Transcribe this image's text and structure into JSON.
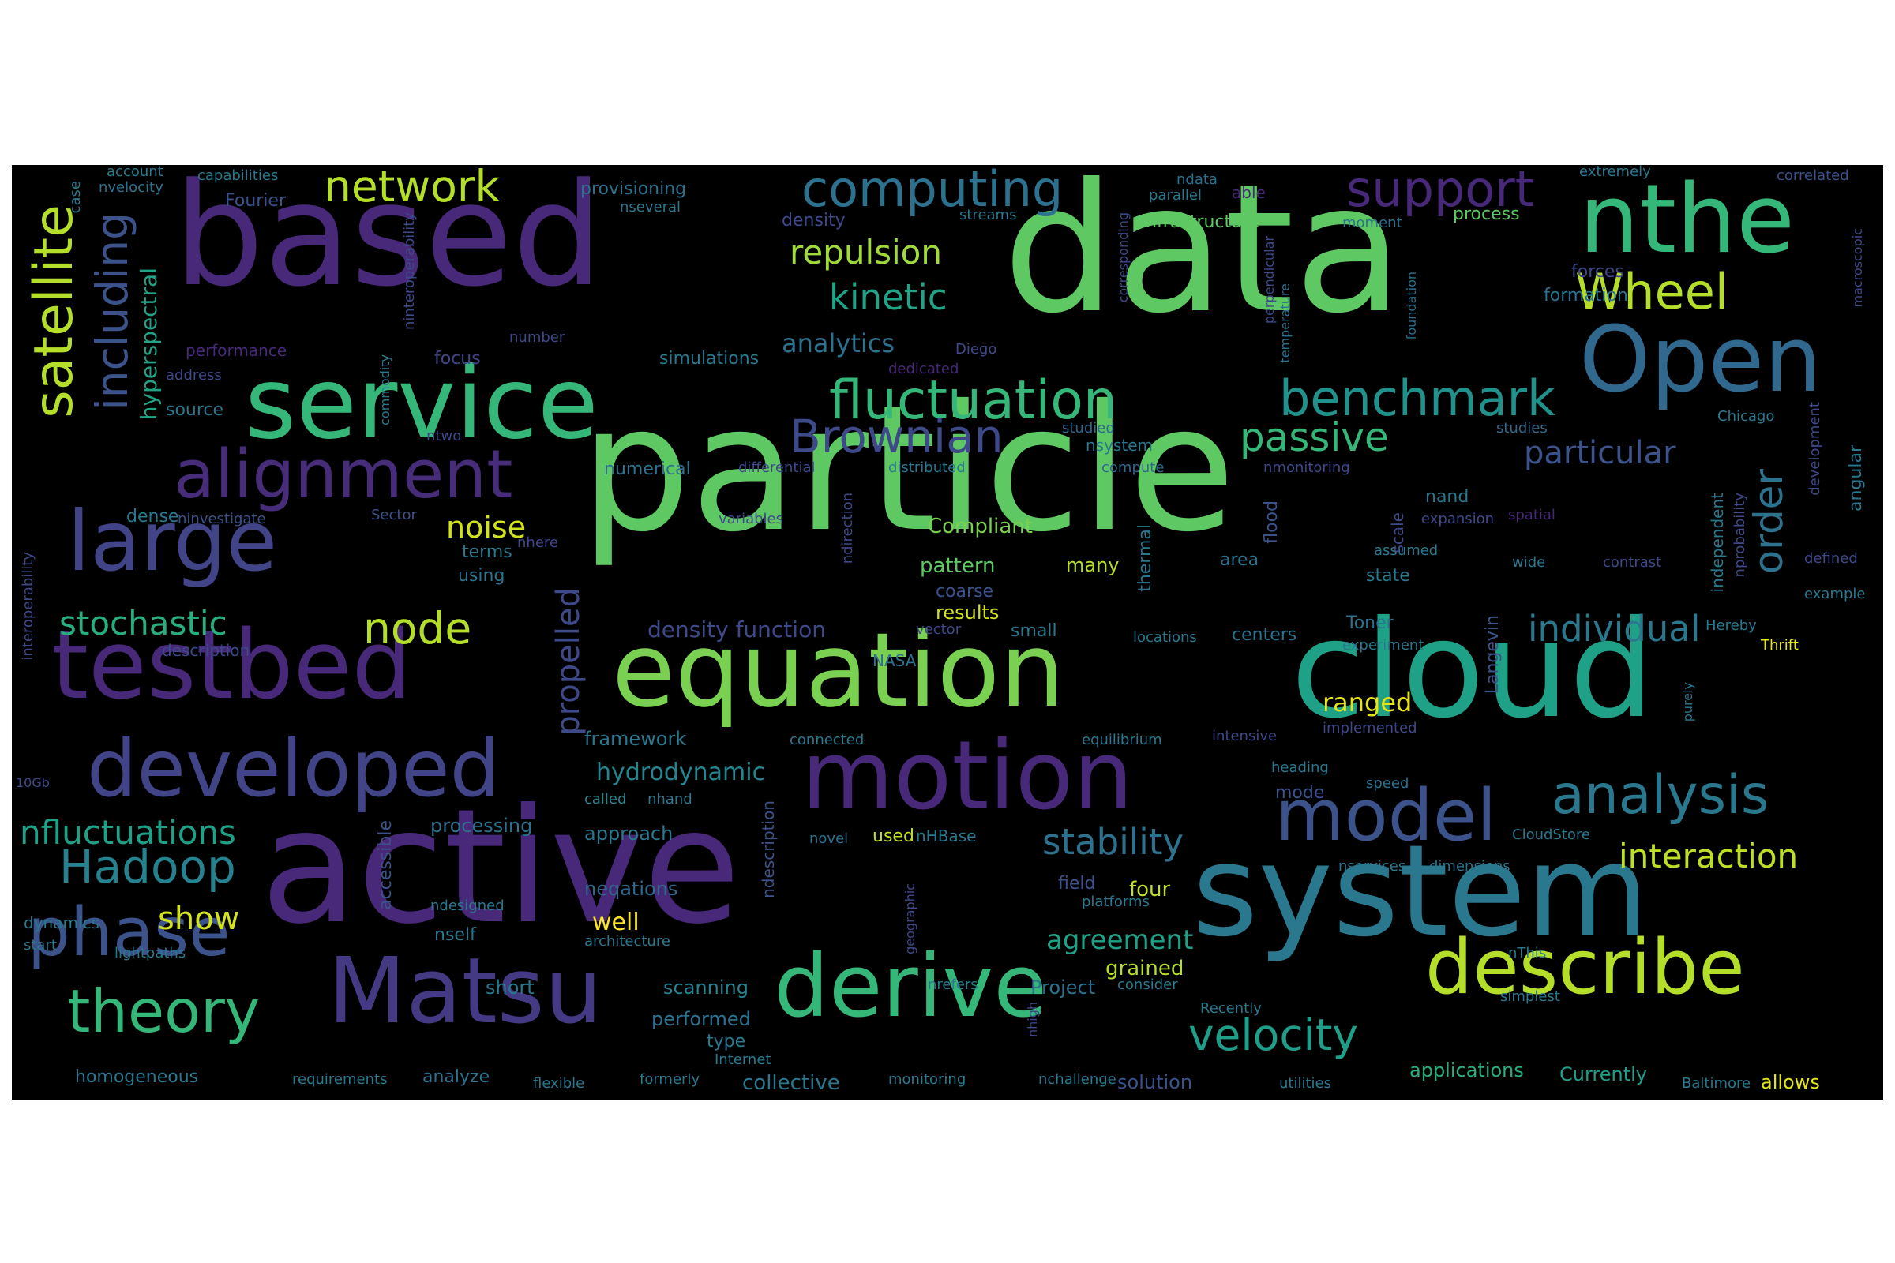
{
  "words": [
    {
      "text": "particle",
      "color": "#5ec962"
    },
    {
      "text": "data",
      "color": "#5ec962"
    },
    {
      "text": "active",
      "color": "#482878"
    },
    {
      "text": "based",
      "color": "#482878"
    },
    {
      "text": "cloud",
      "color": "#1fa188"
    },
    {
      "text": "system",
      "color": "#2a788e"
    },
    {
      "text": "equation",
      "color": "#7ad151"
    },
    {
      "text": "service",
      "color": "#35b779"
    },
    {
      "text": "motion",
      "color": "#482878"
    },
    {
      "text": "testbed",
      "color": "#482878"
    },
    {
      "text": "nthe",
      "color": "#35b779"
    },
    {
      "text": "Matsu",
      "color": "#443983"
    },
    {
      "text": "derive",
      "color": "#35b779"
    },
    {
      "text": "large",
      "color": "#414487"
    },
    {
      "text": "Open",
      "color": "#31688e"
    },
    {
      "text": "developed",
      "color": "#414487"
    },
    {
      "text": "describe",
      "color": "#b5de2b"
    },
    {
      "text": "model",
      "color": "#3b528b"
    },
    {
      "text": "alignment",
      "color": "#472c7a"
    },
    {
      "text": "phase",
      "color": "#3b528b"
    },
    {
      "text": "theory",
      "color": "#35b779"
    },
    {
      "text": "satellite",
      "color": "#b5de2b"
    },
    {
      "text": "fluctuation",
      "color": "#35b779"
    },
    {
      "text": "benchmark",
      "color": "#21918c"
    },
    {
      "text": "analysis",
      "color": "#2a788e"
    },
    {
      "text": "computing",
      "color": "#2c728e"
    },
    {
      "text": "support",
      "color": "#482878"
    },
    {
      "text": "Wheel",
      "color": "#b5de2b"
    },
    {
      "text": "Brownian",
      "color": "#3e4989"
    },
    {
      "text": "velocity",
      "color": "#1f9e89"
    },
    {
      "text": "Hadoop",
      "color": "#26828e"
    },
    {
      "text": "network",
      "color": "#b5de2b"
    },
    {
      "text": "including",
      "color": "#3b528b"
    },
    {
      "text": "node",
      "color": "#b5de2b"
    },
    {
      "text": "stochastic",
      "color": "#29af7f"
    },
    {
      "text": "nfluctuations",
      "color": "#1fa188"
    },
    {
      "text": "order",
      "color": "#2c728e"
    },
    {
      "text": "passive",
      "color": "#35b779"
    },
    {
      "text": "stability",
      "color": "#2c728e"
    },
    {
      "text": "individual",
      "color": "#2a788e"
    },
    {
      "text": "interaction",
      "color": "#bddf26"
    },
    {
      "text": "kinetic",
      "color": "#20a386"
    },
    {
      "text": "repulsion",
      "color": "#a0da39"
    },
    {
      "text": "particular",
      "color": "#3b528b"
    },
    {
      "text": "propelled",
      "color": "#3e4989"
    },
    {
      "text": "noise",
      "color": "#d2e21b"
    },
    {
      "text": "show",
      "color": "#d2e21b"
    },
    {
      "text": "agreement",
      "color": "#1fa188"
    },
    {
      "text": "analytics",
      "color": "#2c728e"
    },
    {
      "text": "hydrodynamic",
      "color": "#25858e"
    },
    {
      "text": "ranged",
      "color": "#e5e419"
    },
    {
      "text": "density function",
      "color": "#3e4989"
    },
    {
      "text": "hyperspectral",
      "color": "#20a386"
    },
    {
      "text": "well",
      "color": "#fde725"
    },
    {
      "text": "Compliant",
      "color": "#7ad151"
    },
    {
      "text": "grained",
      "color": "#b5de2b"
    },
    {
      "text": "four",
      "color": "#c2df23"
    },
    {
      "text": "pattern",
      "color": "#5ec962"
    },
    {
      "text": "many",
      "color": "#b5de2b"
    },
    {
      "text": "results",
      "color": "#d2e21b"
    },
    {
      "text": "framework",
      "color": "#2a788e"
    },
    {
      "text": "neqations",
      "color": "#31688e"
    },
    {
      "text": "processing",
      "color": "#2c728e"
    },
    {
      "text": "approach",
      "color": "#2a788e"
    },
    {
      "text": "scanning",
      "color": "#26828e"
    },
    {
      "text": "performed",
      "color": "#2c728e"
    },
    {
      "text": "short",
      "color": "#2a788e"
    },
    {
      "text": "collective",
      "color": "#2a788e"
    },
    {
      "text": "applications",
      "color": "#29af7f"
    },
    {
      "text": "Currently",
      "color": "#1f9e89"
    },
    {
      "text": "allows",
      "color": "#e5e419"
    },
    {
      "text": "homogeneous",
      "color": "#2a788e"
    },
    {
      "text": "analyze",
      "color": "#2c728e"
    },
    {
      "text": "type",
      "color": "#2a788e"
    },
    {
      "text": "Project",
      "color": "#2c728e"
    },
    {
      "text": "solution",
      "color": "#3b528b"
    },
    {
      "text": "infrastructure",
      "color": "#5ec962"
    },
    {
      "text": "process",
      "color": "#5ec962"
    },
    {
      "text": "formation",
      "color": "#2c728e"
    },
    {
      "text": "forces",
      "color": "#3e4989"
    },
    {
      "text": "provisioning",
      "color": "#2c728e"
    },
    {
      "text": "density",
      "color": "#3e4989"
    },
    {
      "text": "simulations",
      "color": "#2a788e"
    },
    {
      "text": "focus",
      "color": "#414487"
    },
    {
      "text": "source",
      "color": "#2a788e"
    },
    {
      "text": "numerical",
      "color": "#2c728e"
    },
    {
      "text": "dense",
      "color": "#2a788e"
    },
    {
      "text": "terms",
      "color": "#2a788e"
    },
    {
      "text": "using",
      "color": "#2c728e"
    },
    {
      "text": "centers",
      "color": "#2c728e"
    },
    {
      "text": "Toner",
      "color": "#2c728e"
    },
    {
      "text": "state",
      "color": "#2a788e"
    },
    {
      "text": "area",
      "color": "#2c728e"
    },
    {
      "text": "nand",
      "color": "#2a788e"
    },
    {
      "text": "mode",
      "color": "#3b528b"
    },
    {
      "text": "field",
      "color": "#3b528b"
    },
    {
      "text": "description",
      "color": "#3e4989"
    },
    {
      "text": "dynamics",
      "color": "#2a788e"
    },
    {
      "text": "coarse",
      "color": "#3b528b"
    },
    {
      "text": "nsystem",
      "color": "#2a788e"
    },
    {
      "text": "NASA",
      "color": "#2c728e"
    },
    {
      "text": "nself",
      "color": "#2a788e"
    },
    {
      "text": "ndesigned",
      "color": "#2a788e"
    },
    {
      "text": "used",
      "color": "#c2df23"
    },
    {
      "text": "nHBase",
      "color": "#2a788e"
    },
    {
      "text": "novel",
      "color": "#2c728e"
    },
    {
      "text": "called",
      "color": "#25858e"
    },
    {
      "text": "nhand",
      "color": "#2a788e"
    },
    {
      "text": "differential",
      "color": "#3e4989"
    },
    {
      "text": "distributed",
      "color": "#2a788e"
    },
    {
      "text": "compute",
      "color": "#31688e"
    },
    {
      "text": "studied",
      "color": "#31688e"
    },
    {
      "text": "Sector",
      "color": "#3b528b"
    },
    {
      "text": "ninvestigate",
      "color": "#3b528b"
    },
    {
      "text": "variables",
      "color": "#3e4989"
    },
    {
      "text": "nhere",
      "color": "#3e4989"
    },
    {
      "text": "ntwo",
      "color": "#3e4989"
    },
    {
      "text": "address",
      "color": "#3e4989"
    },
    {
      "text": "performance",
      "color": "#482878"
    },
    {
      "text": "account",
      "color": "#2a788e"
    },
    {
      "text": "capabilities",
      "color": "#2a788e"
    },
    {
      "text": "nvelocity",
      "color": "#2c728e"
    },
    {
      "text": "Fourier",
      "color": "#3b528b"
    },
    {
      "text": "nseveral",
      "color": "#2a788e"
    },
    {
      "text": "streams",
      "color": "#2a788e"
    },
    {
      "text": "parallel",
      "color": "#2a788e"
    },
    {
      "text": "able",
      "color": "#482878"
    },
    {
      "text": "ndata",
      "color": "#2c728e"
    },
    {
      "text": "moment",
      "color": "#2c728e"
    },
    {
      "text": "extremely",
      "color": "#2a788e"
    },
    {
      "text": "correlated",
      "color": "#3b528b"
    },
    {
      "text": "Chicago",
      "color": "#2a788e"
    },
    {
      "text": "Diego",
      "color": "#3e4989"
    },
    {
      "text": "dedicated",
      "color": "#482878"
    },
    {
      "text": "number",
      "color": "#3e4989"
    },
    {
      "text": "nmonitoring",
      "color": "#3e4989"
    },
    {
      "text": "expansion",
      "color": "#3e4989"
    },
    {
      "text": "assumed",
      "color": "#2a788e"
    },
    {
      "text": "spatial",
      "color": "#482878"
    },
    {
      "text": "studies",
      "color": "#31688e"
    },
    {
      "text": "wide",
      "color": "#2a788e"
    },
    {
      "text": "contrast",
      "color": "#3e4989"
    },
    {
      "text": "defined",
      "color": "#3e4989"
    },
    {
      "text": "example",
      "color": "#2a788e"
    },
    {
      "text": "Thrift",
      "color": "#e5e419"
    },
    {
      "text": "Hereby",
      "color": "#2a788e"
    },
    {
      "text": "experiment",
      "color": "#2a788e"
    },
    {
      "text": "small",
      "color": "#2a788e"
    },
    {
      "text": "vector",
      "color": "#3e4989"
    },
    {
      "text": "locations",
      "color": "#2a788e"
    },
    {
      "text": "implemented",
      "color": "#3e4989"
    },
    {
      "text": "intensive",
      "color": "#3e4989"
    },
    {
      "text": "equilibrium",
      "color": "#2a788e"
    },
    {
      "text": "connected",
      "color": "#2a788e"
    },
    {
      "text": "heading",
      "color": "#2a788e"
    },
    {
      "text": "speed",
      "color": "#2c728e"
    },
    {
      "text": "CloudStore",
      "color": "#2a788e"
    },
    {
      "text": "nservices",
      "color": "#2a788e"
    },
    {
      "text": "dimensions",
      "color": "#2a788e"
    },
    {
      "text": "platforms",
      "color": "#2a788e"
    },
    {
      "text": "nThis",
      "color": "#2a788e"
    },
    {
      "text": "consider",
      "color": "#2a788e"
    },
    {
      "text": "Recently",
      "color": "#2a788e"
    },
    {
      "text": "simplest",
      "color": "#2a788e"
    },
    {
      "text": "nchallenge",
      "color": "#2a788e"
    },
    {
      "text": "monitoring",
      "color": "#2a788e"
    },
    {
      "text": "utilities",
      "color": "#2a788e"
    },
    {
      "text": "Baltimore",
      "color": "#2a788e"
    },
    {
      "text": "Internet",
      "color": "#2a788e"
    },
    {
      "text": "formerly",
      "color": "#2a788e"
    },
    {
      "text": "flexible",
      "color": "#2a788e"
    },
    {
      "text": "requirements",
      "color": "#2a788e"
    },
    {
      "text": "nrefers",
      "color": "#2a788e"
    },
    {
      "text": "architecture",
      "color": "#2a788e"
    },
    {
      "text": "lightpaths",
      "color": "#2a788e"
    },
    {
      "text": "start",
      "color": "#2a788e"
    },
    {
      "text": "10Gb",
      "color": "#3e4989"
    },
    {
      "text": "case",
      "color": "#2a788e"
    },
    {
      "text": "interoperability",
      "color": "#3e4989"
    },
    {
      "text": "ninteroperability",
      "color": "#3e4989"
    },
    {
      "text": "commodity",
      "color": "#2a788e"
    },
    {
      "text": "corresponding",
      "color": "#3e4989"
    },
    {
      "text": "perpendicular",
      "color": "#3e4989"
    },
    {
      "text": "temperature",
      "color": "#2c728e"
    },
    {
      "text": "foundation",
      "color": "#2c728e"
    },
    {
      "text": "macroscopic",
      "color": "#3e4989"
    },
    {
      "text": "development",
      "color": "#3e4989"
    },
    {
      "text": "angular",
      "color": "#2a788e"
    },
    {
      "text": "nprobability",
      "color": "#3e4989"
    },
    {
      "text": "independent",
      "color": "#2a788e"
    },
    {
      "text": "purely",
      "color": "#2a788e"
    },
    {
      "text": "Langevin",
      "color": "#3b528b"
    },
    {
      "text": "flood",
      "color": "#3b528b"
    },
    {
      "text": "scale",
      "color": "#3e4989"
    },
    {
      "text": "thermal",
      "color": "#2a788e"
    },
    {
      "text": "ndirection",
      "color": "#3e4989"
    },
    {
      "text": "ndescription",
      "color": "#3b528b"
    },
    {
      "text": "accessible",
      "color": "#3b528b"
    },
    {
      "text": "geographic",
      "color": "#3e4989"
    },
    {
      "text": "nhigh",
      "color": "#3e4989"
    }
  ]
}
